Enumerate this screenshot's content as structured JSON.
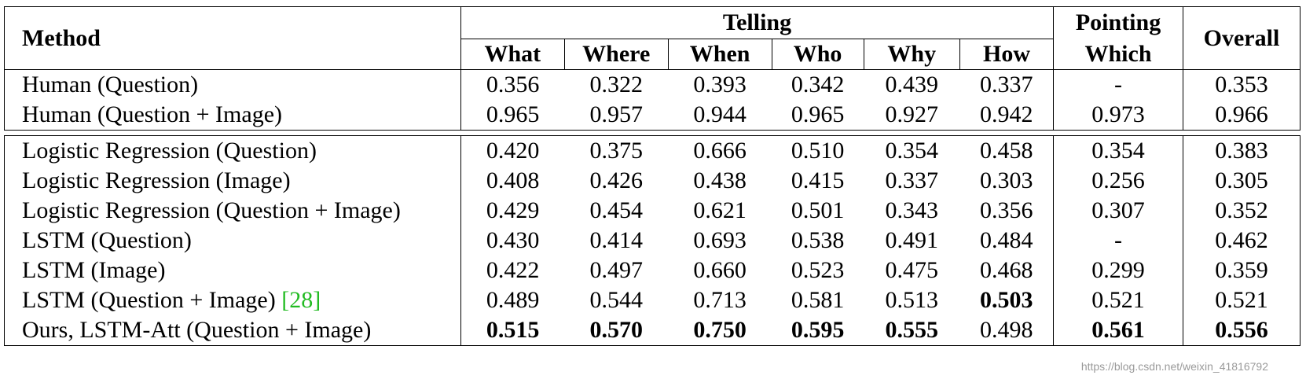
{
  "table": {
    "header": {
      "method": "Method",
      "telling": "Telling",
      "pointing": "Pointing",
      "overall": "Overall",
      "telling_cols": [
        "What",
        "Where",
        "When",
        "Who",
        "Why",
        "How"
      ],
      "pointing_cols": [
        "Which"
      ]
    },
    "groups": [
      {
        "rows": [
          {
            "method": "Human (Question)",
            "values": [
              "0.356",
              "0.322",
              "0.393",
              "0.342",
              "0.439",
              "0.337",
              "-",
              "0.353"
            ],
            "bold": [
              false,
              false,
              false,
              false,
              false,
              false,
              false,
              false
            ]
          },
          {
            "method": "Human (Question + Image)",
            "values": [
              "0.965",
              "0.957",
              "0.944",
              "0.965",
              "0.927",
              "0.942",
              "0.973",
              "0.966"
            ],
            "bold": [
              false,
              false,
              false,
              false,
              false,
              false,
              false,
              false
            ]
          }
        ]
      },
      {
        "rows": [
          {
            "method": "Logistic Regression (Question)",
            "values": [
              "0.420",
              "0.375",
              "0.666",
              "0.510",
              "0.354",
              "0.458",
              "0.354",
              "0.383"
            ],
            "bold": [
              false,
              false,
              false,
              false,
              false,
              false,
              false,
              false
            ]
          },
          {
            "method": "Logistic Regression (Image)",
            "values": [
              "0.408",
              "0.426",
              "0.438",
              "0.415",
              "0.337",
              "0.303",
              "0.256",
              "0.305"
            ],
            "bold": [
              false,
              false,
              false,
              false,
              false,
              false,
              false,
              false
            ]
          },
          {
            "method": "Logistic Regression (Question + Image)",
            "values": [
              "0.429",
              "0.454",
              "0.621",
              "0.501",
              "0.343",
              "0.356",
              "0.307",
              "0.352"
            ],
            "bold": [
              false,
              false,
              false,
              false,
              false,
              false,
              false,
              false
            ]
          },
          {
            "method": "LSTM (Question)",
            "values": [
              "0.430",
              "0.414",
              "0.693",
              "0.538",
              "0.491",
              "0.484",
              "-",
              "0.462"
            ],
            "bold": [
              false,
              false,
              false,
              false,
              false,
              false,
              false,
              false
            ]
          },
          {
            "method": "LSTM (Image)",
            "values": [
              "0.422",
              "0.497",
              "0.660",
              "0.523",
              "0.475",
              "0.468",
              "0.299",
              "0.359"
            ],
            "bold": [
              false,
              false,
              false,
              false,
              false,
              false,
              false,
              false
            ]
          },
          {
            "method": "LSTM (Question + Image) ",
            "cite": "[28]",
            "values": [
              "0.489",
              "0.544",
              "0.713",
              "0.581",
              "0.513",
              "0.503",
              "0.521",
              "0.521"
            ],
            "bold": [
              false,
              false,
              false,
              false,
              false,
              true,
              false,
              false
            ]
          },
          {
            "method": "Ours, LSTM-Att (Question + Image)",
            "values": [
              "0.515",
              "0.570",
              "0.750",
              "0.595",
              "0.555",
              "0.498",
              "0.561",
              "0.556"
            ],
            "bold": [
              true,
              true,
              true,
              true,
              true,
              false,
              true,
              true
            ]
          }
        ]
      }
    ],
    "watermark": "https://blog.csdn.net/weixin_41816792"
  }
}
